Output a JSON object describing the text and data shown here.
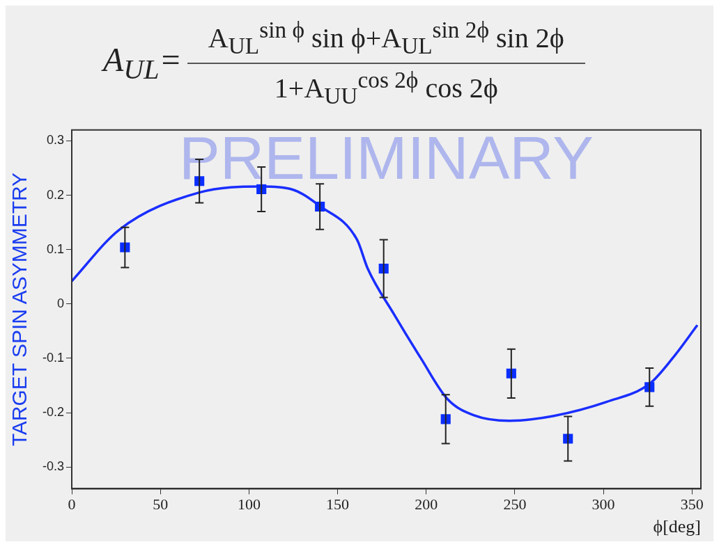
{
  "chart_data": {
    "type": "scatter",
    "title": "A$_{UL}$=",
    "annotations": [
      "A$_{UL}$$^{sin ϕ}$ sin ϕ+A$_{UL}$$^{sin 2ϕ}$ sin 2ϕ",
      "1+A$_{UU}$$^{cos 2ϕ}$ cos 2ϕ",
      "PRELIMINARY"
    ],
    "xlabel": "ϕ[deg]",
    "ylabel": "TARGET SPIN ASYMMETRY",
    "xlim": [
      0,
      355
    ],
    "xticks": [
      0,
      50,
      100,
      150,
      200,
      250,
      300,
      350
    ],
    "ylim": [
      -0.34,
      0.32
    ],
    "yticks": [
      -0.3,
      -0.2,
      -0.1,
      0,
      0.1,
      0.2,
      0.3
    ],
    "grid": false,
    "legend": false,
    "marker": "square",
    "series": [
      {
        "color": "#0a2eff",
        "x": [
          30,
          72,
          107,
          140,
          176,
          211,
          248,
          280,
          326
        ],
        "values": [
          0.104,
          0.226,
          0.211,
          0.179,
          0.065,
          -0.212,
          -0.128,
          -0.248,
          -0.153
        ],
        "errors": [
          0.037,
          0.04,
          0.041,
          0.042,
          0.053,
          0.045,
          0.045,
          0.041,
          0.035
        ]
      },
      {
        "type": "line",
        "color": "#1a2eff",
        "marker": "none",
        "line_style": "solid",
        "x": [
          0,
          27,
          72,
          107,
          124,
          140,
          161,
          167,
          182,
          197,
          212,
          227,
          247,
          272,
          302,
          326,
          339,
          353
        ],
        "values": [
          0.042,
          0.137,
          0.205,
          0.216,
          0.211,
          0.18,
          0.118,
          0.065,
          -0.02,
          -0.1,
          -0.175,
          -0.205,
          -0.215,
          -0.206,
          -0.18,
          -0.147,
          -0.1,
          -0.039
        ]
      }
    ]
  }
}
